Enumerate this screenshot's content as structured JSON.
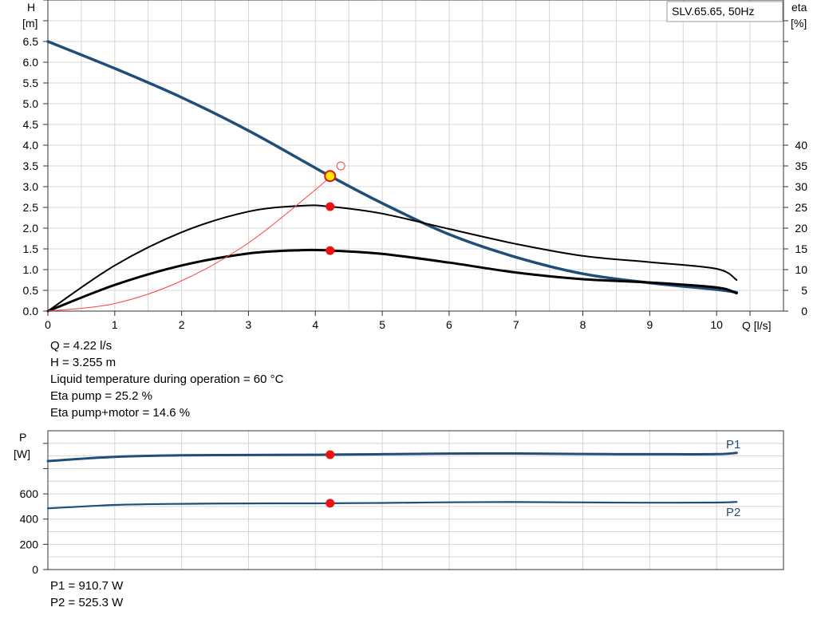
{
  "chart_data": [
    {
      "type": "line",
      "title": "SLV.65.65, 50Hz",
      "xlabel": "Q [l/s]",
      "ylabel": [
        "H",
        "[m]"
      ],
      "y2label": [
        "eta",
        "[%]"
      ],
      "xlim": [
        0,
        11
      ],
      "ylim": [
        0,
        7.5
      ],
      "y2lim": [
        0,
        75
      ],
      "x_ticks": [
        "0",
        "1",
        "2",
        "3",
        "4",
        "5",
        "6",
        "7",
        "8",
        "9",
        "10"
      ],
      "y_ticks": [
        "0.0",
        "0.5",
        "1.0",
        "1.5",
        "2.0",
        "2.5",
        "3.0",
        "3.5",
        "4.0",
        "4.5",
        "5.0",
        "5.5",
        "6.0",
        "6.5"
      ],
      "y2_ticks": [
        "0",
        "5",
        "10",
        "15",
        "20",
        "25",
        "30",
        "35",
        "40"
      ],
      "grid": true,
      "series": [
        {
          "color": "#1f4e79",
          "axis": "H",
          "x": [
            0,
            1,
            2,
            3,
            4,
            4.22,
            5,
            6,
            7,
            8,
            9,
            10,
            10.3
          ],
          "y": [
            6.5,
            5.85,
            5.15,
            4.35,
            3.45,
            3.255,
            2.6,
            1.85,
            1.3,
            0.9,
            0.68,
            0.52,
            0.45
          ]
        },
        {
          "color": "#000000",
          "axis": "eta",
          "x": [
            0,
            1,
            2,
            3,
            3.8,
            4.22,
            5,
            6,
            7,
            8,
            9,
            10,
            10.3
          ],
          "y": [
            0,
            11,
            19,
            24,
            25.4,
            25.2,
            23.5,
            19.8,
            16.2,
            13.3,
            11.8,
            10.2,
            7.5
          ]
        },
        {
          "color": "#000000",
          "axis": "eta",
          "x": [
            0,
            1,
            2,
            3,
            3.8,
            4.22,
            5,
            6,
            7,
            8,
            9,
            10,
            10.3
          ],
          "y": [
            0,
            6.3,
            11,
            13.9,
            14.7,
            14.6,
            13.8,
            11.7,
            9.3,
            7.7,
            6.9,
            5.7,
            4.3
          ]
        },
        {
          "color": "#ff4040",
          "axis": "H",
          "x": [
            0,
            1,
            2,
            3,
            4,
            4.22
          ],
          "y": [
            0,
            0.183,
            0.73,
            1.645,
            2.925,
            3.255
          ]
        }
      ],
      "operating_point": {
        "x": 4.22,
        "h": 3.255,
        "eta_pump": 25.2,
        "eta_total": 14.6
      }
    },
    {
      "type": "line",
      "ylabel": [
        "P",
        "[W]"
      ],
      "xlim": [
        0,
        11
      ],
      "ylim": [
        0,
        1100
      ],
      "y_ticks": [
        "0",
        "200",
        "400",
        "600"
      ],
      "grid": true,
      "series": [
        {
          "name": "P1",
          "color": "#1f4e79",
          "x": [
            0,
            1,
            2,
            3,
            4,
            4.22,
            5,
            6,
            7,
            8,
            9,
            10,
            10.3
          ],
          "y": [
            860,
            893,
            905,
            908,
            910,
            910.7,
            914,
            919,
            920,
            916,
            914,
            915,
            925
          ]
        },
        {
          "name": "P2",
          "color": "#1f4e79",
          "x": [
            0,
            1,
            2,
            3,
            4,
            4.22,
            5,
            6,
            7,
            8,
            9,
            10,
            10.3
          ],
          "y": [
            485,
            512,
            521,
            524,
            525,
            525.3,
            528,
            533,
            535,
            532,
            530,
            531,
            536
          ]
        }
      ],
      "operating_point": {
        "x": 4.22,
        "p1": 910.7,
        "p2": 525.3
      }
    }
  ],
  "readout": {
    "q": "Q = 4.22 l/s",
    "h": "H = 3.255 m",
    "temp": "Liquid temperature during operation = 60 °C",
    "eta_pump": "Eta pump = 25.2 %",
    "eta_total": "Eta pump+motor = 14.6 %",
    "p1": "P1 = 910.7 W",
    "p2": "P2 = 525.3 W"
  },
  "colors": {
    "curve": "#1f4e79",
    "grid": "#d4d4d4",
    "point": "#ee1111",
    "system": "#ff4040"
  }
}
